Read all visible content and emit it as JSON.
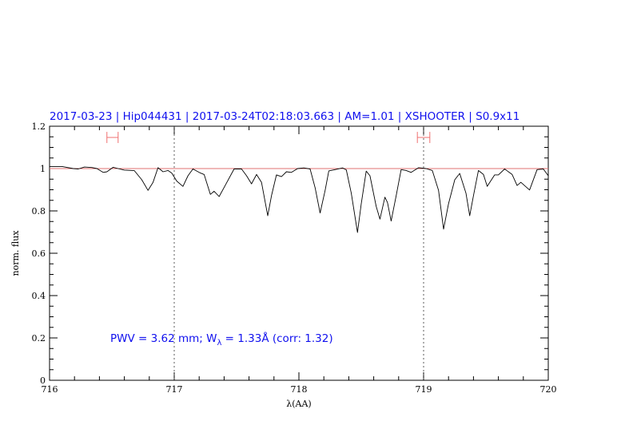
{
  "chart_data": {
    "type": "line",
    "title": "2017-03-23 | Hip044431 | 2017-03-24T02:18:03.663 | AM=1.01 | XSHOOTER | S0.9x11",
    "xlabel": "λ(AA)",
    "ylabel": "norm. flux",
    "xlim": [
      716,
      720
    ],
    "ylim": [
      0,
      1.2
    ],
    "x_ticks": [
      "716",
      "717",
      "718",
      "719",
      "720"
    ],
    "y_ticks": [
      "0",
      "0.2",
      "0.4",
      "0.6",
      "0.8",
      "1",
      "1.2"
    ],
    "annotation": {
      "prefix": "PWV = 3.62 mm; W",
      "subscript": "λ",
      "suffix": " = 1.33Å (corr: 1.32)"
    },
    "reference_line_y": 1.0,
    "vertical_dotted_lines_x": [
      717,
      719
    ],
    "integration_ranges": [
      [
        716.46,
        716.55
      ],
      [
        718.95,
        719.05
      ]
    ],
    "integration_range_y": 1.147,
    "colors": {
      "spectrum": "#000000",
      "reference_line": "#e07070",
      "ranges": "#f07070",
      "text": "#1010ee"
    },
    "grid": false,
    "series": [
      {
        "x": [
          716.0,
          716.1,
          716.19,
          716.23,
          716.28,
          716.34,
          716.38,
          716.43,
          716.46,
          716.51,
          716.55,
          716.6,
          716.68,
          716.74,
          716.79,
          716.83,
          716.87,
          716.91,
          716.95,
          716.98,
          717.02,
          717.07,
          717.11,
          717.15,
          717.21,
          717.24,
          717.29,
          717.32,
          717.36,
          717.41,
          717.48,
          717.54,
          717.58,
          717.62,
          717.66,
          717.7,
          717.75,
          717.78,
          717.82,
          717.86,
          717.9,
          717.94,
          717.99,
          718.04,
          718.09,
          718.13,
          718.17,
          718.21,
          718.24,
          718.29,
          718.35,
          718.38,
          718.42,
          718.47,
          718.5,
          718.54,
          718.57,
          718.62,
          718.65,
          718.69,
          718.71,
          718.74,
          718.78,
          718.82,
          718.86,
          718.9,
          718.96,
          719.02,
          719.07,
          719.12,
          719.16,
          719.2,
          719.25,
          719.29,
          719.34,
          719.37,
          719.4,
          719.44,
          719.48,
          719.51,
          719.57,
          719.6,
          719.65,
          719.71,
          719.75,
          719.78,
          719.85,
          719.91,
          719.96,
          720.0
        ],
        "y": [
          1.01,
          1.01,
          1.0,
          0.998,
          1.007,
          1.005,
          1.0,
          0.982,
          0.985,
          1.006,
          1.0,
          0.993,
          0.99,
          0.947,
          0.897,
          0.935,
          1.004,
          0.985,
          0.991,
          0.979,
          0.941,
          0.916,
          0.966,
          0.998,
          0.979,
          0.972,
          0.878,
          0.893,
          0.868,
          0.922,
          0.998,
          0.998,
          0.966,
          0.928,
          0.972,
          0.935,
          0.777,
          0.872,
          0.97,
          0.962,
          0.985,
          0.982,
          1.0,
          1.003,
          0.998,
          0.909,
          0.79,
          0.897,
          0.989,
          0.995,
          1.003,
          0.994,
          0.884,
          0.698,
          0.834,
          0.988,
          0.966,
          0.821,
          0.761,
          0.865,
          0.84,
          0.752,
          0.872,
          0.995,
          0.991,
          0.982,
          1.004,
          1.0,
          0.991,
          0.897,
          0.714,
          0.834,
          0.947,
          0.977,
          0.884,
          0.777,
          0.872,
          0.991,
          0.972,
          0.916,
          0.97,
          0.97,
          0.998,
          0.972,
          0.92,
          0.935,
          0.899,
          0.995,
          0.998,
          0.966
        ]
      }
    ]
  }
}
